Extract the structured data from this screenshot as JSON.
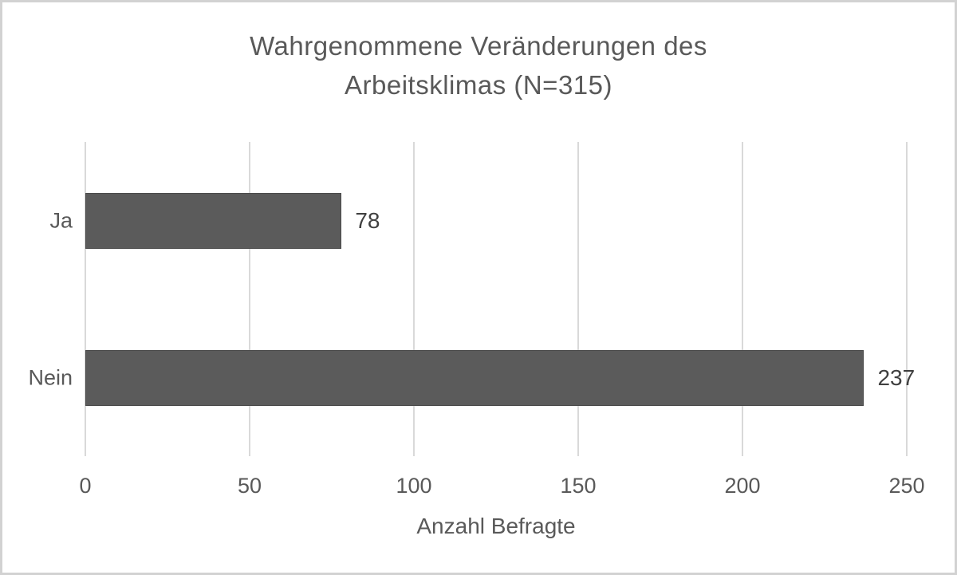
{
  "chart_data": {
    "type": "bar",
    "orientation": "horizontal",
    "title": "Wahrgenommene Veränderungen des Arbeitsklimas (N=315)",
    "title_lines": [
      "Wahrgenommene Veränderungen des",
      "Arbeitsklimas (N=315)"
    ],
    "categories": [
      "Ja",
      "Nein"
    ],
    "values": [
      78,
      237
    ],
    "data_labels": [
      "78",
      "237"
    ],
    "xlabel": "Anzahl Befragte",
    "ylabel": "",
    "xlim": [
      0,
      250
    ],
    "xticks": [
      0,
      50,
      100,
      150,
      200,
      250
    ],
    "xtick_labels": [
      "0",
      "50",
      "100",
      "150",
      "200",
      "250"
    ],
    "grid": "vertical-only",
    "legend": "none",
    "colors": {
      "bar_fill": "#5b5b5b",
      "bar_border": "#494949",
      "gridline": "#d9d9d9",
      "title_text": "#595959",
      "axis_text": "#595959",
      "data_label_text": "#404040",
      "frame_border": "#d2d2d2",
      "background": "#ffffff"
    }
  }
}
